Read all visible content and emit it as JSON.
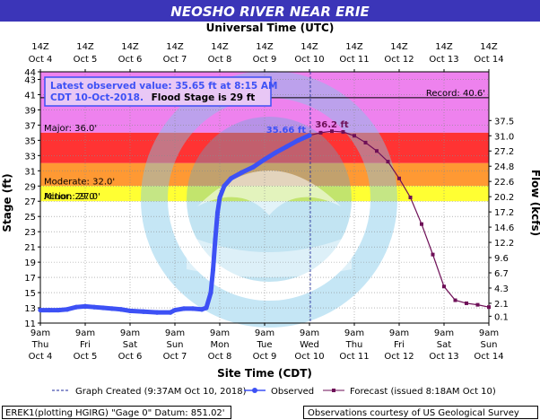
{
  "chart_data": {
    "type": "line",
    "title": "NEOSHO RIVER NEAR ERIE",
    "top_axis_label": "Universal Time (UTC)",
    "xlabel": "Site Time (CDT)",
    "ylabel": "Stage (ft)",
    "y2label": "Flow (kcfs)",
    "ylim": [
      11,
      44
    ],
    "y_ticks": [
      11,
      13,
      15,
      17,
      19,
      21,
      23,
      25,
      27,
      29,
      31,
      33,
      35,
      37,
      39,
      41,
      43,
      44
    ],
    "flow_ticks": [
      {
        "stage": 11.9,
        "label": "0.1"
      },
      {
        "stage": 13.6,
        "label": "2.1"
      },
      {
        "stage": 15.6,
        "label": "4.3"
      },
      {
        "stage": 17.6,
        "label": "6.7"
      },
      {
        "stage": 19.6,
        "label": "9.6"
      },
      {
        "stage": 21.6,
        "label": "12.2"
      },
      {
        "stage": 23.6,
        "label": "14.6"
      },
      {
        "stage": 25.6,
        "label": "17.2"
      },
      {
        "stage": 27.6,
        "label": "20.2"
      },
      {
        "stage": 29.6,
        "label": "22.6"
      },
      {
        "stage": 31.6,
        "label": "24.8"
      },
      {
        "stage": 33.6,
        "label": "27.2"
      },
      {
        "stage": 35.6,
        "label": "31.0"
      },
      {
        "stage": 37.6,
        "label": "37.5"
      }
    ],
    "x_day_range": [
      4,
      14
    ],
    "bottom_ticks": [
      {
        "day": 4,
        "time": "9am",
        "dow": "Thu",
        "date": "Oct 4"
      },
      {
        "day": 5,
        "time": "9am",
        "dow": "Fri",
        "date": "Oct 5"
      },
      {
        "day": 6,
        "time": "9am",
        "dow": "Sat",
        "date": "Oct 6"
      },
      {
        "day": 7,
        "time": "9am",
        "dow": "Sun",
        "date": "Oct 7"
      },
      {
        "day": 8,
        "time": "9am",
        "dow": "Mon",
        "date": "Oct 8"
      },
      {
        "day": 9,
        "time": "9am",
        "dow": "Tue",
        "date": "Oct 9"
      },
      {
        "day": 10,
        "time": "9am",
        "dow": "Wed",
        "date": "Oct 10"
      },
      {
        "day": 11,
        "time": "9am",
        "dow": "Thu",
        "date": "Oct 11"
      },
      {
        "day": 12,
        "time": "9am",
        "dow": "Fri",
        "date": "Oct 12"
      },
      {
        "day": 13,
        "time": "9am",
        "dow": "Sat",
        "date": "Oct 13"
      },
      {
        "day": 14,
        "time": "9am",
        "dow": "Sun",
        "date": "Oct 14"
      }
    ],
    "top_ticks": [
      {
        "day": 4,
        "time": "14Z",
        "date": "Oct 4"
      },
      {
        "day": 5,
        "time": "14Z",
        "date": "Oct 5"
      },
      {
        "day": 6,
        "time": "14Z",
        "date": "Oct 6"
      },
      {
        "day": 7,
        "time": "14Z",
        "date": "Oct 7"
      },
      {
        "day": 8,
        "time": "14Z",
        "date": "Oct 8"
      },
      {
        "day": 9,
        "time": "14Z",
        "date": "Oct 9"
      },
      {
        "day": 10,
        "time": "14Z",
        "date": "Oct 10"
      },
      {
        "day": 11,
        "time": "14Z",
        "date": "Oct 11"
      },
      {
        "day": 12,
        "time": "14Z",
        "date": "Oct 12"
      },
      {
        "day": 13,
        "time": "14Z",
        "date": "Oct 13"
      },
      {
        "day": 14,
        "time": "14Z",
        "date": "Oct 14"
      }
    ],
    "flood_bands": [
      {
        "label": "Major: 36.0'",
        "from": 36,
        "to": 44,
        "color": "#ee82ee"
      },
      {
        "label": "",
        "from": 32,
        "to": 36,
        "color": "#ff3333"
      },
      {
        "label": "Moderate: 32.0'",
        "from": 29,
        "to": 32,
        "color": "#ff9933"
      },
      {
        "label": "Minor: 29.0'",
        "from": 27,
        "to": 29,
        "color": "#ffff33"
      },
      {
        "label": "Action: 27.0'",
        "from": 27,
        "to": 27,
        "color": "#ffff33"
      }
    ],
    "record_stage": 40.6,
    "record_label": "Record: 40.6'",
    "graph_created_day": 10.02,
    "observed": {
      "name": "Observed",
      "color": "#3d51f5",
      "peak_label": "35.66 ft",
      "points": [
        [
          4.0,
          12.7
        ],
        [
          4.2,
          12.7
        ],
        [
          4.4,
          12.7
        ],
        [
          4.6,
          12.8
        ],
        [
          4.8,
          13.1
        ],
        [
          5.0,
          13.2
        ],
        [
          5.2,
          13.1
        ],
        [
          5.4,
          13.0
        ],
        [
          5.6,
          12.9
        ],
        [
          5.8,
          12.8
        ],
        [
          6.0,
          12.6
        ],
        [
          6.3,
          12.5
        ],
        [
          6.6,
          12.4
        ],
        [
          6.9,
          12.4
        ],
        [
          7.0,
          12.7
        ],
        [
          7.2,
          12.9
        ],
        [
          7.4,
          12.9
        ],
        [
          7.6,
          12.8
        ],
        [
          7.7,
          13.0
        ],
        [
          7.8,
          15.0
        ],
        [
          7.85,
          18.0
        ],
        [
          7.9,
          22.0
        ],
        [
          7.95,
          25.5
        ],
        [
          8.0,
          27.5
        ],
        [
          8.1,
          29.0
        ],
        [
          8.25,
          30.0
        ],
        [
          8.5,
          30.8
        ],
        [
          8.75,
          31.5
        ],
        [
          9.0,
          32.5
        ],
        [
          9.25,
          33.4
        ],
        [
          9.5,
          34.2
        ],
        [
          9.75,
          35.0
        ],
        [
          10.0,
          35.65
        ]
      ]
    },
    "forecast": {
      "name": "Forecast (issued 8:18AM Oct 10)",
      "color": "#6e0f57",
      "crest_label": "36.2 ft",
      "points": [
        [
          10.0,
          35.65
        ],
        [
          10.25,
          36.0
        ],
        [
          10.5,
          36.2
        ],
        [
          10.75,
          36.1
        ],
        [
          11.0,
          35.6
        ],
        [
          11.25,
          34.7
        ],
        [
          11.5,
          33.6
        ],
        [
          11.75,
          32.2
        ],
        [
          12.0,
          30.0
        ],
        [
          12.25,
          27.5
        ],
        [
          12.5,
          24.0
        ],
        [
          12.75,
          20.0
        ],
        [
          13.0,
          15.8
        ],
        [
          13.25,
          14.0
        ],
        [
          13.5,
          13.6
        ],
        [
          13.75,
          13.4
        ],
        [
          14.0,
          13.1
        ]
      ]
    },
    "latest_box": {
      "line1": "Latest observed value: 35.65 ft at 8:15 AM",
      "line2a": "CDT 10-Oct-2018.",
      "line2b": "Flood Stage is 29 ft"
    },
    "legend": {
      "created": "Graph Created (9:37AM Oct 10, 2018)",
      "observed": "Observed",
      "forecast": "Forecast (issued 8:18AM Oct 10)"
    },
    "footer": {
      "left": "EREK1(plotting HGIRG) \"Gage 0\" Datum: 851.02'",
      "right": "Observations courtesy of US Geological Survey"
    },
    "colors": {
      "title_band": "#3b35b8",
      "box_border": "#3d51f5",
      "box_text": "#3d51f5",
      "grid": "#888888"
    }
  }
}
